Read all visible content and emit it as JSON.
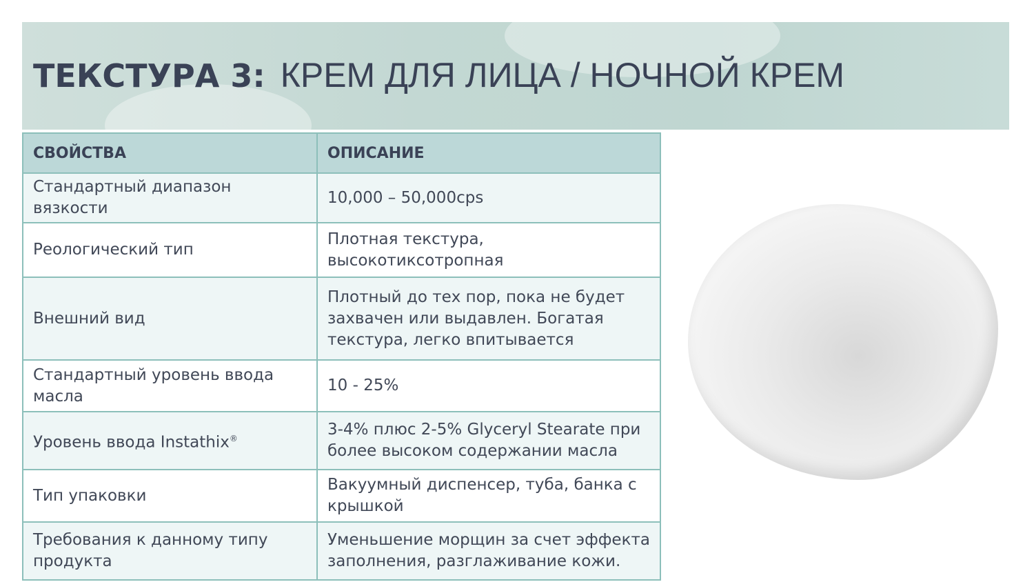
{
  "title": {
    "bold": "ТЕКСТУРА 3:",
    "rest": "КРЕМ ДЛЯ ЛИЦА / НОЧНОЙ КРЕМ"
  },
  "table": {
    "headers": [
      "СВОЙСТВА",
      "ОПИСАНИЕ"
    ],
    "rows": [
      [
        "Стандартный диапазон вязкости",
        "10,000 – 50,000cps"
      ],
      [
        "Реологический тип",
        "Плотная текстура, высокотиксотропная"
      ],
      [
        "Внешний вид",
        "Плотный до тех пор, пока не будет захвачен или выдавлен. Богатая текстура, легко впитывается"
      ],
      [
        "Стандартный уровень ввода масла",
        "10 - 25%"
      ],
      [
        "Уровень ввода Instathix",
        "3-4% плюс 2-5% Glyceryl Stearate при более высоком содержании масла"
      ],
      [
        "Тип упаковки",
        "Вакуумный диспенсер, туба, банка с крышкой"
      ],
      [
        "Требования к данному типу продукта",
        "Уменьшение морщин за счет эффекта заполнения, разглаживание кожи."
      ]
    ],
    "registered_mark": "®"
  },
  "colors": {
    "header_bg": "#bcd8d8",
    "alt_row": "#eef6f6",
    "border": "#8cbfba",
    "text": "#414857"
  }
}
